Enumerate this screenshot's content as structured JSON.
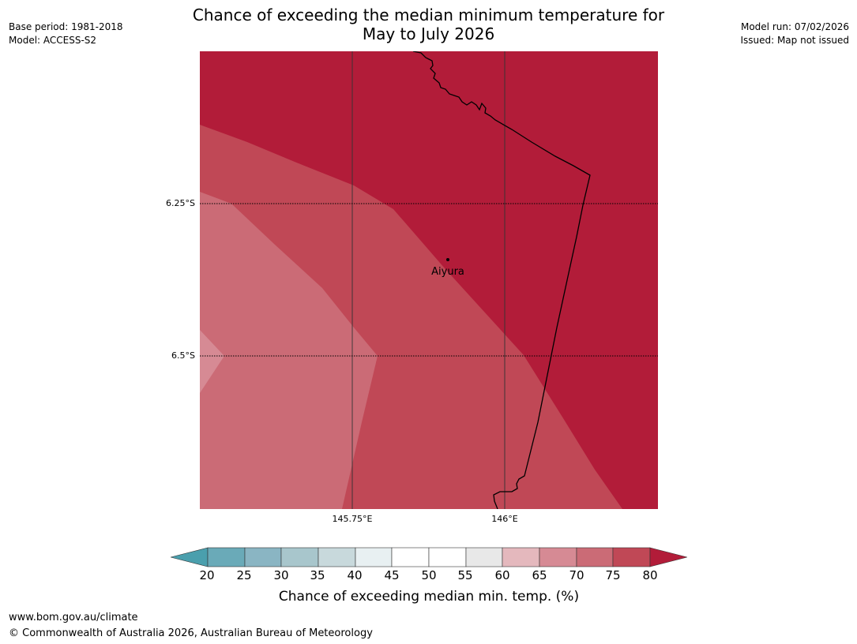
{
  "title": {
    "line1": "Chance of exceeding the median minimum temperature for",
    "line2": "May to July 2026"
  },
  "meta_left": {
    "base_period": "Base period: 1981-2018",
    "model": "Model: ACCESS-S2"
  },
  "meta_right": {
    "model_run": "Model run: 07/02/2026",
    "issued": "Issued: Map not issued"
  },
  "map": {
    "lat_labels": [
      "6.25°S",
      "6.5°S"
    ],
    "lon_labels": [
      "145.75°E",
      "146°E"
    ],
    "places": [
      {
        "name": "Aiyura"
      }
    ]
  },
  "colors": {
    "c_below_20": "#4a9fad",
    "c_20_25": "#6aaab8",
    "c_25_30": "#8ab5c3",
    "c_30_35": "#a8c6cc",
    "c_35_40": "#c8d9dc",
    "c_40_45": "#e8f0f2",
    "c_45_50": "#ffffff",
    "c_50_55": "#ffffff",
    "c_55_60": "#e8e8e8",
    "c_60_65": "#e4b8bd",
    "c_65_70": "#d68a94",
    "c_70_75": "#cb6b76",
    "c_75_80": "#c04856",
    "c_above_80": "#b21c39"
  },
  "colorbar": {
    "ticks": [
      "20",
      "25",
      "30",
      "35",
      "40",
      "45",
      "50",
      "55",
      "60",
      "65",
      "70",
      "75",
      "80"
    ],
    "label": "Chance of exceeding median min. temp. (%)"
  },
  "footer": {
    "url": "www.bom.gov.au/climate",
    "copyright": "© Commonwealth of Australia 2026, Australian Bureau of Meteorology"
  }
}
